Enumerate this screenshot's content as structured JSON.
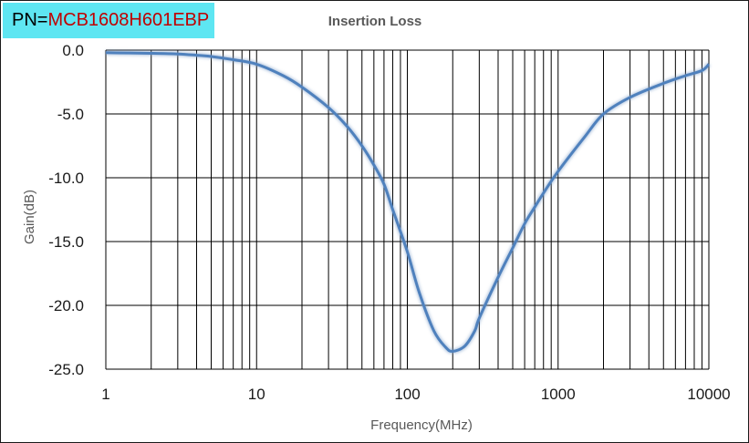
{
  "badge": {
    "prefix": "PN=",
    "value": "MCB1608H601EBP",
    "background": "#5ee6f2",
    "value_color": "#c00000"
  },
  "chart_data": {
    "type": "line",
    "title": "Insertion Loss",
    "xlabel": "Frequency(MHz)",
    "ylabel": "Gain(dB)",
    "x_scale": "log",
    "xlim": [
      1,
      10000
    ],
    "ylim": [
      -25,
      0
    ],
    "x_ticks": [
      1,
      10,
      100,
      1000,
      10000
    ],
    "x_tick_labels": [
      "1",
      "10",
      "100",
      "1000",
      "10000"
    ],
    "y_ticks": [
      0,
      -5,
      -10,
      -15,
      -20,
      -25
    ],
    "y_tick_labels": [
      "0.0",
      "-5.0",
      "-10.0",
      "-15.0",
      "-20.0",
      "-25.0"
    ],
    "grid": true,
    "legend": "none",
    "series": [
      {
        "color": "#4f81bd",
        "points": [
          [
            1,
            -0.2
          ],
          [
            2,
            -0.25
          ],
          [
            3,
            -0.3
          ],
          [
            4,
            -0.4
          ],
          [
            5,
            -0.5
          ],
          [
            7,
            -0.75
          ],
          [
            10,
            -1.1
          ],
          [
            15,
            -2.0
          ],
          [
            20,
            -2.9
          ],
          [
            30,
            -4.5
          ],
          [
            40,
            -6.0
          ],
          [
            50,
            -7.5
          ],
          [
            60,
            -9.0
          ],
          [
            70,
            -10.5
          ],
          [
            80,
            -12.5
          ],
          [
            100,
            -15.8
          ],
          [
            120,
            -19.0
          ],
          [
            150,
            -22.0
          ],
          [
            180,
            -23.3
          ],
          [
            200,
            -23.6
          ],
          [
            240,
            -23.2
          ],
          [
            280,
            -22.0
          ],
          [
            300,
            -21.0
          ],
          [
            400,
            -17.8
          ],
          [
            500,
            -15.5
          ],
          [
            600,
            -13.6
          ],
          [
            700,
            -12.3
          ],
          [
            800,
            -11.2
          ],
          [
            1000,
            -9.5
          ],
          [
            1500,
            -6.8
          ],
          [
            2000,
            -5.0
          ],
          [
            3000,
            -3.7
          ],
          [
            5000,
            -2.6
          ],
          [
            7000,
            -2.0
          ],
          [
            9000,
            -1.6
          ],
          [
            10000,
            -1.1
          ]
        ]
      }
    ]
  }
}
